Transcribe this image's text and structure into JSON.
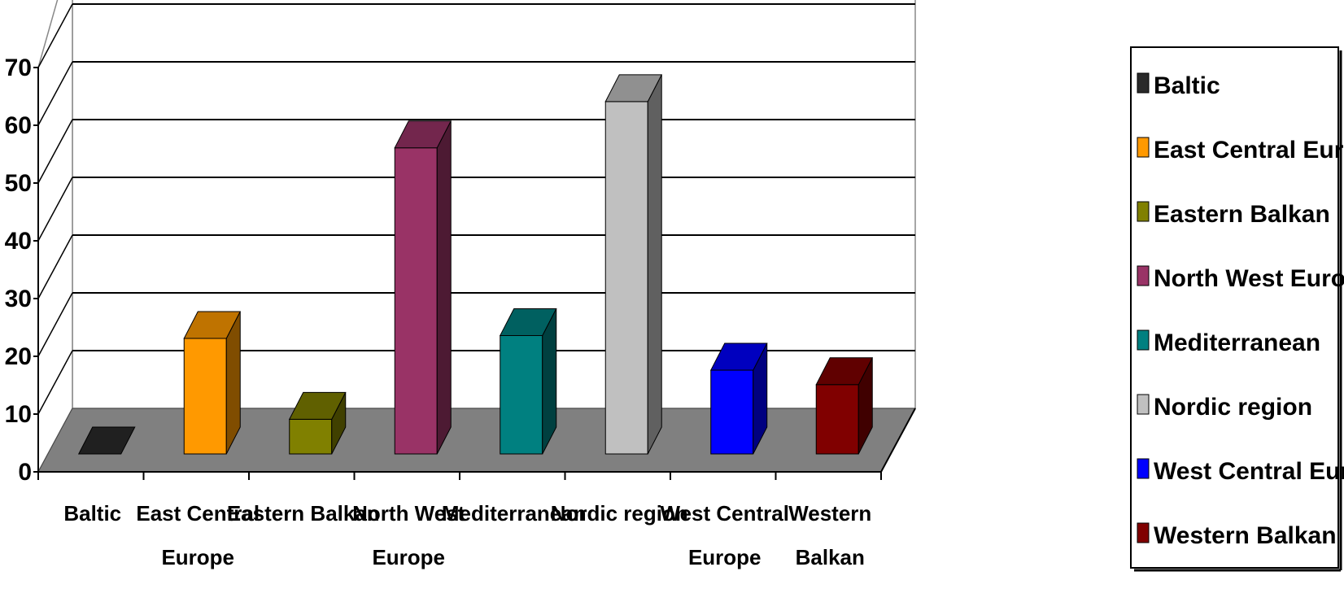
{
  "chart_data": {
    "type": "bar",
    "categories": [
      "Baltic",
      "East Central Europe",
      "Eastern Balkan",
      "North West Europe",
      "Mediterranean",
      "Nordic region",
      "West Central Europe",
      "Western Balkan"
    ],
    "category_labels": [
      [
        "Baltic"
      ],
      [
        "East Central",
        "Europe"
      ],
      [
        "Eastern Balkan"
      ],
      [
        "North West",
        "Europe"
      ],
      [
        "Mediterranean"
      ],
      [
        "Nordic region"
      ],
      [
        "West Central",
        "Europe"
      ],
      [
        "Western",
        "Balkan"
      ]
    ],
    "values": [
      0,
      20,
      6,
      53,
      20.5,
      61,
      14.5,
      12
    ],
    "colors": [
      "#2a2a2a",
      "#ff9900",
      "#808000",
      "#993366",
      "#008080",
      "#c0c0c0",
      "#0000ff",
      "#800000"
    ],
    "ylim": [
      0,
      70
    ],
    "yticks": [
      "0",
      "10",
      "20",
      "30",
      "40",
      "50",
      "60",
      "70"
    ],
    "grid": true,
    "legend_position": "right",
    "legend": [
      "Baltic",
      "East Central Europe",
      "Eastern Balkan",
      "North West Europe",
      "Mediterranean",
      "Nordic region",
      "West Central Europe",
      "Western Balkan"
    ],
    "title": "",
    "xlabel": "",
    "ylabel": ""
  }
}
